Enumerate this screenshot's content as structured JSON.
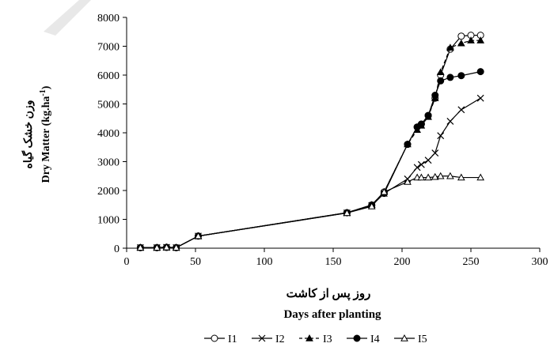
{
  "chart_data": {
    "type": "line",
    "ylabel_fa": "وزن خشک گیاه",
    "ylabel_en": "Dry Matter (kg.ha",
    "ylabel_en_sup": "-1",
    "ylabel_en_close": ")",
    "xlabel_fa": "روز پس از کاشت",
    "xlabel_en": "Days after planting",
    "xlim": [
      0,
      300
    ],
    "ylim": [
      0,
      8000
    ],
    "xticks": [
      0,
      50,
      100,
      150,
      200,
      250,
      300
    ],
    "yticks": [
      0,
      1000,
      2000,
      3000,
      4000,
      5000,
      6000,
      7000,
      8000
    ],
    "legend_position": "bottom",
    "series": [
      {
        "name": "I1",
        "marker": "circle-open",
        "x": [
          10,
          22,
          29,
          36,
          52,
          160,
          178,
          187,
          204,
          211,
          214,
          219,
          224,
          228,
          235,
          243,
          250,
          257
        ],
        "y": [
          20,
          20,
          30,
          20,
          420,
          1230,
          1500,
          1950,
          3600,
          4200,
          4300,
          4600,
          5200,
          6000,
          6900,
          7350,
          7380,
          7380
        ]
      },
      {
        "name": "I2",
        "marker": "x",
        "x": [
          10,
          22,
          29,
          36,
          52,
          160,
          178,
          187,
          204,
          211,
          214,
          219,
          224,
          228,
          235,
          243,
          257
        ],
        "y": [
          20,
          20,
          30,
          20,
          420,
          1220,
          1480,
          1900,
          2400,
          2800,
          2900,
          3050,
          3300,
          3900,
          4400,
          4800,
          5200
        ]
      },
      {
        "name": "I3",
        "marker": "triangle-filled",
        "x": [
          10,
          22,
          29,
          36,
          52,
          160,
          178,
          187,
          204,
          211,
          214,
          219,
          224,
          228,
          235,
          243,
          250,
          257
        ],
        "y": [
          20,
          20,
          30,
          20,
          420,
          1230,
          1500,
          1950,
          3600,
          4100,
          4250,
          4550,
          5200,
          6100,
          6950,
          7100,
          7200,
          7200
        ]
      },
      {
        "name": "I4",
        "marker": "circle-filled",
        "x": [
          10,
          22,
          29,
          36,
          52,
          160,
          178,
          187,
          204,
          211,
          214,
          219,
          224,
          228,
          235,
          243,
          257
        ],
        "y": [
          20,
          20,
          30,
          20,
          420,
          1230,
          1480,
          1900,
          3600,
          4200,
          4300,
          4600,
          5300,
          5800,
          5920,
          5980,
          6120
        ]
      },
      {
        "name": "I5",
        "marker": "triangle-open",
        "x": [
          10,
          22,
          29,
          36,
          52,
          160,
          178,
          187,
          204,
          211,
          214,
          219,
          224,
          228,
          235,
          243,
          257
        ],
        "y": [
          20,
          20,
          30,
          20,
          420,
          1220,
          1450,
          1950,
          2300,
          2450,
          2450,
          2450,
          2470,
          2500,
          2500,
          2450,
          2450
        ]
      }
    ]
  }
}
